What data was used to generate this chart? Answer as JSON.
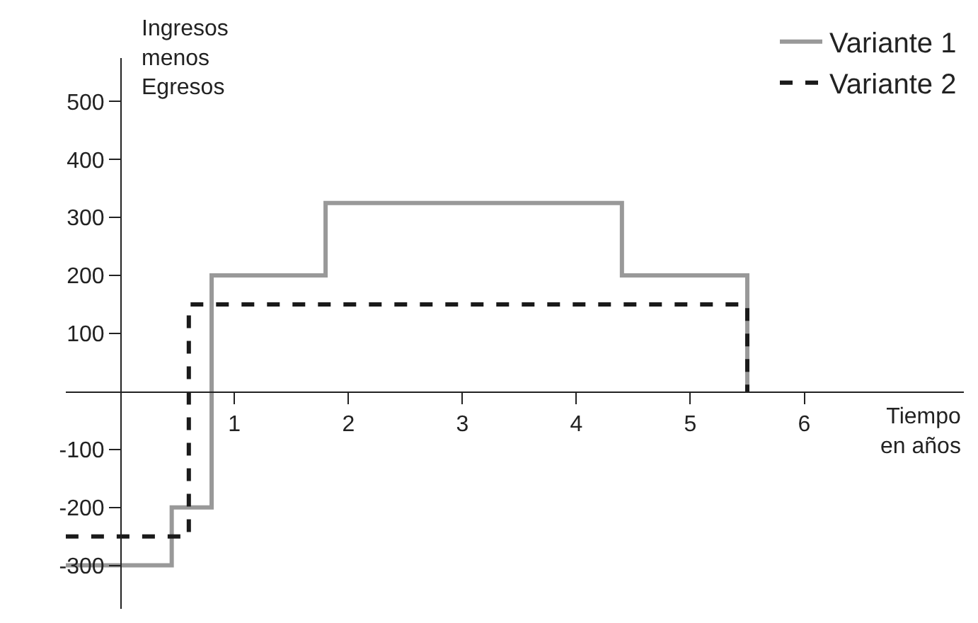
{
  "chart_data": {
    "type": "step",
    "xlabel": "Tiempo\nen años",
    "ylabel": "Ingresos\nmenos\nEgresos",
    "series": [
      {
        "name": "Variante 1",
        "color": "#999999",
        "line_style": "solid",
        "x": [
          -0.48,
          0.45,
          0.8,
          1.8,
          4.4,
          5.5
        ],
        "values": [
          -300,
          -200,
          200,
          325,
          200,
          0
        ]
      },
      {
        "name": "Variante 2",
        "color": "#1a1a1a",
        "line_style": "dashed",
        "x": [
          -0.48,
          0.6,
          5.5
        ],
        "values": [
          -250,
          150,
          0
        ]
      }
    ],
    "xlim": [
      -0.48,
      7.4
    ],
    "xticks": [
      1,
      2,
      3,
      4,
      5,
      6
    ],
    "ylim": [
      -375,
      575
    ],
    "yticks": [
      -300,
      -200,
      -100,
      100,
      200,
      300,
      400,
      500
    ],
    "grid": false,
    "legend": "top right",
    "marker": "none"
  }
}
